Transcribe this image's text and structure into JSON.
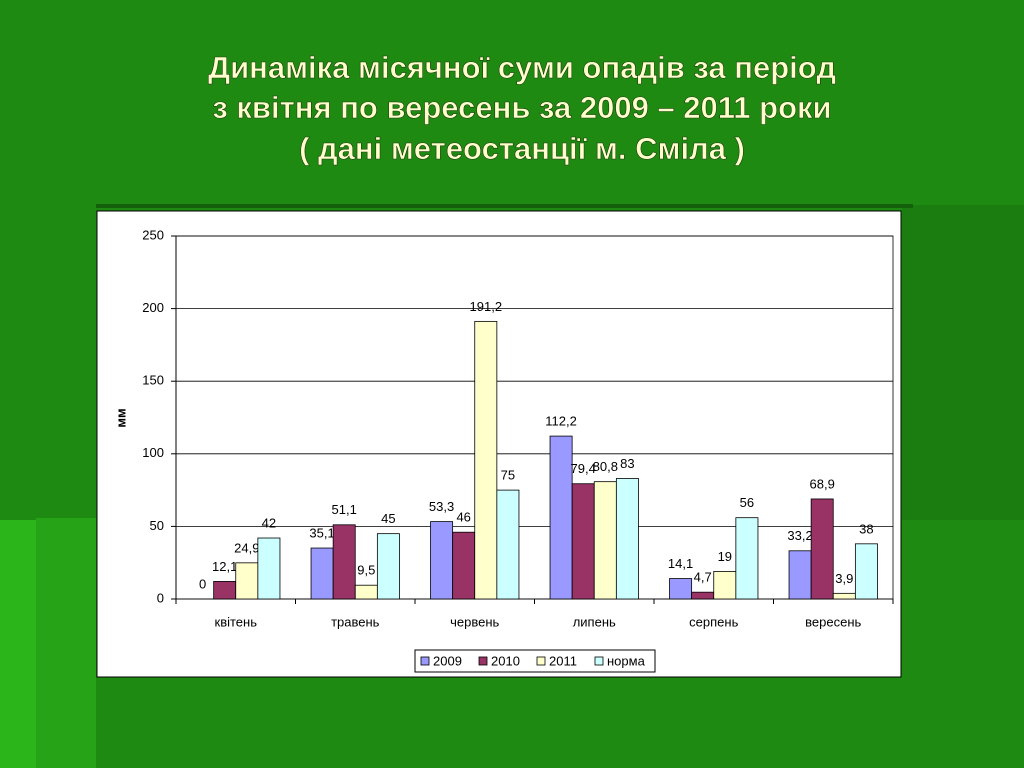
{
  "chart_data": {
    "type": "bar",
    "title": [
      "Динаміка  місячної суми опадів за період",
      "з квітня по вересень за 2009 – 2011 роки",
      "( дані метеостанції м. Сміла )"
    ],
    "y_label": "мм",
    "categories": [
      "квітень",
      "травень",
      "червень",
      "липень",
      "серпень",
      "вересень"
    ],
    "series": [
      {
        "name": "2009",
        "color": "#9999ff",
        "values": [
          0,
          35.1,
          53.3,
          112.2,
          14.1,
          33.2
        ],
        "value_labels": [
          "0",
          "35,1",
          "53,3",
          "112,2",
          "14,1",
          "33,2"
        ]
      },
      {
        "name": "2010",
        "color": "#993366",
        "values": [
          12.1,
          51.1,
          46,
          79.4,
          4.7,
          68.9
        ],
        "value_labels": [
          "12,1",
          "51,1",
          "46",
          "79,4",
          "4,7",
          "68,9"
        ]
      },
      {
        "name": "2011",
        "color": "#ffffcc",
        "values": [
          24.9,
          9.5,
          191.2,
          80.8,
          19,
          3.9
        ],
        "value_labels": [
          "24,9",
          "9,5",
          "191,2",
          "80,8",
          "19",
          "3,9"
        ]
      },
      {
        "name": "норма",
        "color": "#ccffff",
        "values": [
          42,
          45,
          75,
          83,
          56,
          38
        ],
        "value_labels": [
          "42",
          "45",
          "75",
          "83",
          "56",
          "38"
        ]
      }
    ],
    "ylim": [
      0,
      250
    ],
    "yticks": [
      0,
      50,
      100,
      150,
      200,
      250
    ],
    "grid": true,
    "legend": "bottom"
  }
}
